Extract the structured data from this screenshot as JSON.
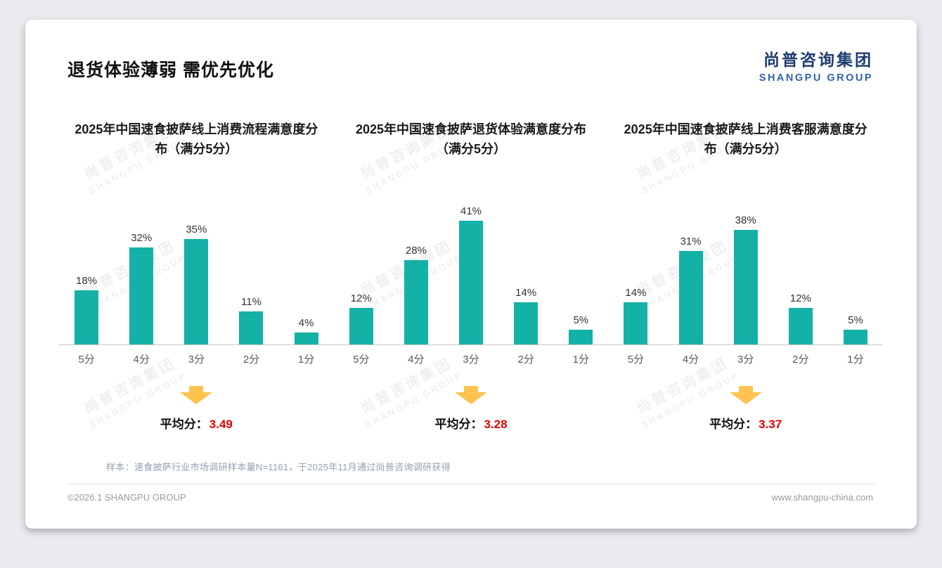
{
  "page": {
    "title": "退货体验薄弱 需优先优化",
    "logo": {
      "cn": "尚普咨询集团",
      "en": "SHANGPU GROUP"
    },
    "watermark": {
      "cn": "尚普咨询集团",
      "en": "SHANGPU GROUP"
    },
    "avg_label": "平均分：",
    "note": "样本：速食披萨行业市场调研样本量N=1161，于2025年11月通过尚普咨询调研获得",
    "footer_left": "©2026.1 SHANGPU GROUP",
    "footer_right": "www.shangpu-china.com"
  },
  "colors": {
    "bar": "#14b1a7",
    "avg_number": "#e60000",
    "arrow": "#ffc34e",
    "logo_cn": "#1d3c6e",
    "logo_en": "#2f62ab"
  },
  "chart_data": [
    {
      "type": "bar",
      "title": "2025年中国速食披萨线上消费流程满意度分布（满分5分）",
      "categories": [
        "5分",
        "4分",
        "3分",
        "2分",
        "1分"
      ],
      "values": [
        18,
        32,
        35,
        11,
        4
      ],
      "unit": "%",
      "average": "3.49",
      "ylim": [
        0,
        45
      ],
      "grid": false,
      "legend": "none"
    },
    {
      "type": "bar",
      "title": "2025年中国速食披萨退货体验满意度分布（满分5分）",
      "categories": [
        "5分",
        "4分",
        "3分",
        "2分",
        "1分"
      ],
      "values": [
        12,
        28,
        41,
        14,
        5
      ],
      "unit": "%",
      "average": "3.28",
      "ylim": [
        0,
        45
      ],
      "grid": false,
      "legend": "none"
    },
    {
      "type": "bar",
      "title": "2025年中国速食披萨线上消费客服满意度分布（满分5分）",
      "categories": [
        "5分",
        "4分",
        "3分",
        "2分",
        "1分"
      ],
      "values": [
        14,
        31,
        38,
        12,
        5
      ],
      "unit": "%",
      "average": "3.37",
      "ylim": [
        0,
        45
      ],
      "grid": false,
      "legend": "none"
    }
  ]
}
